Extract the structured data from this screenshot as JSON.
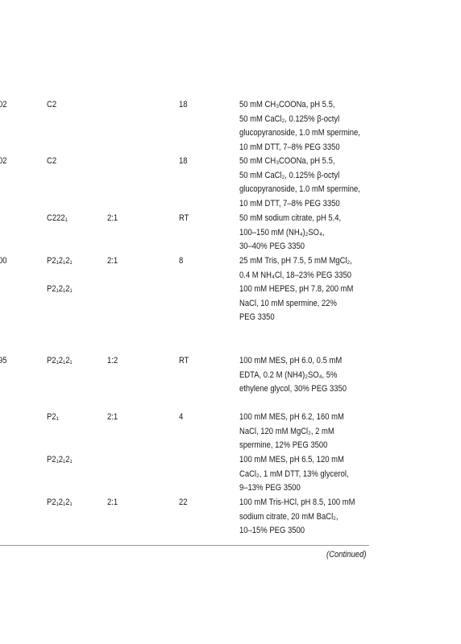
{
  "table": {
    "rows": [
      {
        "c0": "02",
        "group": "C2",
        "temp": "18",
        "conditions": [
          "50 mM CH₃COONa, pH 5.5,",
          "50 mM CaCl₂, 0.125% β-octyl",
          "glucopyranoside, 1.0 mM spermine,",
          "10 mM DTT, 7–8% PEG 3350"
        ]
      },
      {
        "c0": "02",
        "group": "C2",
        "temp": "18",
        "conditions": [
          "50 mM CH₃COONa, pH 5.5,",
          "50 mM CaCl₂, 0.125% β-octyl",
          "glucopyranoside, 1.0 mM spermine,",
          "10 mM DTT, 7–8% PEG 3350"
        ]
      },
      {
        "group": "C222₁",
        "ratio": "2:1",
        "temp": "RT",
        "conditions": [
          "50 mM sodium citrate, pH 5.4,",
          "100–150 mM (NH₄)₂SO₄,",
          "30–40% PEG 3350"
        ]
      },
      {
        "c0": "00",
        "group": "P2₁2₁2₁",
        "ratio": "2:1",
        "temp": "8",
        "conditions": [
          "25 mM Tris, pH 7.5, 5 mM MgCl₂,",
          "0.4 M NH₄Cl, 18–23% PEG 3350"
        ]
      },
      {
        "group": "P2₁2₁2₁",
        "conditions": [
          "100 mM HEPES, pH 7.8, 200 mM",
          "NaCl, 10 mM spermine, 22%",
          "PEG 3350"
        ]
      },
      {
        "c0": "95",
        "group": "P2₁2₁2₁",
        "ratio": "1:2",
        "temp": "RT",
        "conditions": [
          "100 mM MES, pH 6.0, 0.5 mM",
          "EDTA, 0.2 M (NH4)₂SO₄, 5%",
          "ethylene glycol, 30% PEG 3350"
        ]
      },
      {
        "group": "P2₁",
        "ratio": "2:1",
        "temp": "4",
        "conditions": [
          "100 mM MES, pH 6.2, 160 mM",
          "NaCl, 120 mM MgCl₂, 2 mM",
          "spermine, 12% PEG 3500"
        ]
      },
      {
        "c0": ",",
        "group": "P2₁2₁2₁",
        "conditions": [
          "100 mM MES, pH 6.5, 120 mM",
          "CaCl₂, 1 mM DTT, 13% glycerol,",
          "9–13% PEG 3500"
        ]
      },
      {
        "group": "P2₁2₁2₁",
        "ratio": "2:1",
        "temp": "22",
        "conditions": [
          "100 mM Tris-HCl, pH 8.5, 100 mM",
          "sodium citrate, 20 mM BaCl₂,",
          "10–15% PEG 3500"
        ]
      }
    ],
    "footnote": "(Continued)"
  }
}
